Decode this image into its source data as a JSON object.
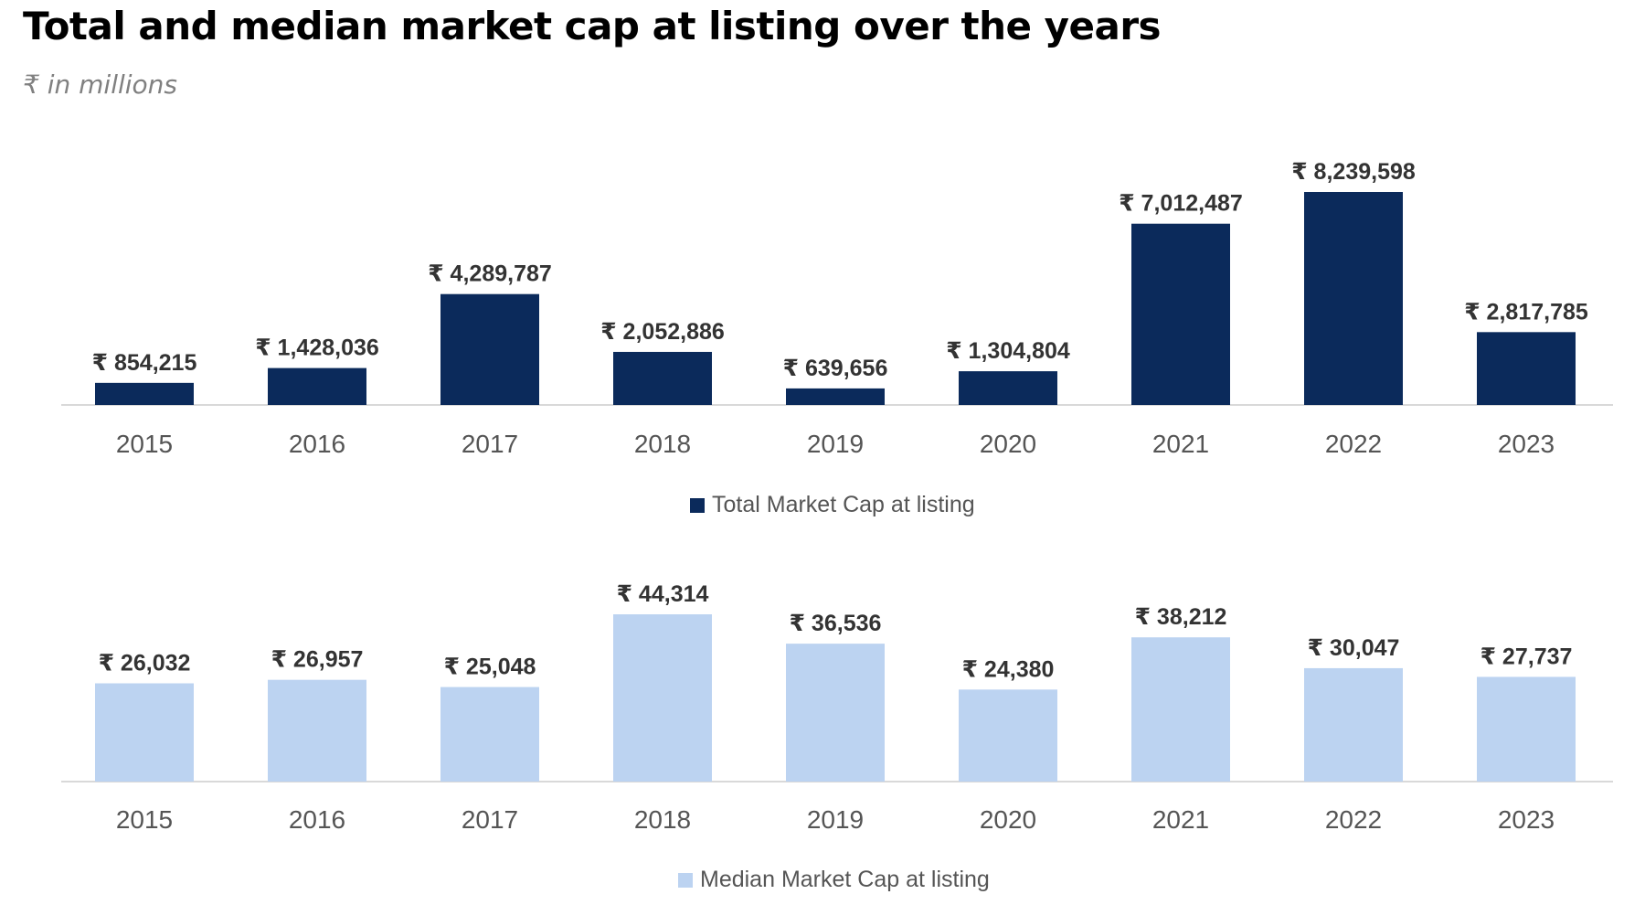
{
  "title": "Total and median market cap at listing over the years",
  "subtitle": "₹ in millions",
  "colors": {
    "total": "#0b2a5b",
    "median": "#bcd3f1",
    "axis": "#d9d9d9"
  },
  "chart_data": [
    {
      "type": "bar",
      "categories": [
        "2015",
        "2016",
        "2017",
        "2018",
        "2019",
        "2020",
        "2021",
        "2022",
        "2023"
      ],
      "series": [
        {
          "name": "Total Market Cap at listing",
          "values": [
            854215,
            1428036,
            4289787,
            2052886,
            639656,
            1304804,
            7012487,
            8239598,
            2817785
          ],
          "data_labels": [
            "₹ 854,215",
            "₹ 1,428,036",
            "₹ 4,289,787",
            "₹ 2,052,886",
            "₹ 639,656",
            "₹ 1,304,804",
            "₹ 7,012,487",
            "₹ 8,239,598",
            "₹ 2,817,785"
          ]
        }
      ],
      "legend": "bottom",
      "grid": false
    },
    {
      "type": "bar",
      "categories": [
        "2015",
        "2016",
        "2017",
        "2018",
        "2019",
        "2020",
        "2021",
        "2022",
        "2023"
      ],
      "series": [
        {
          "name": "Median Market Cap at listing",
          "values": [
            26032,
            26957,
            25048,
            44314,
            36536,
            24380,
            38212,
            30047,
            27737
          ],
          "data_labels": [
            "₹ 26,032",
            "₹ 26,957",
            "₹ 25,048",
            "₹ 44,314",
            "₹ 36,536",
            "₹ 24,380",
            "₹ 38,212",
            "₹ 30,047",
            "₹ 27,737"
          ]
        }
      ],
      "legend": "bottom",
      "grid": false
    }
  ]
}
